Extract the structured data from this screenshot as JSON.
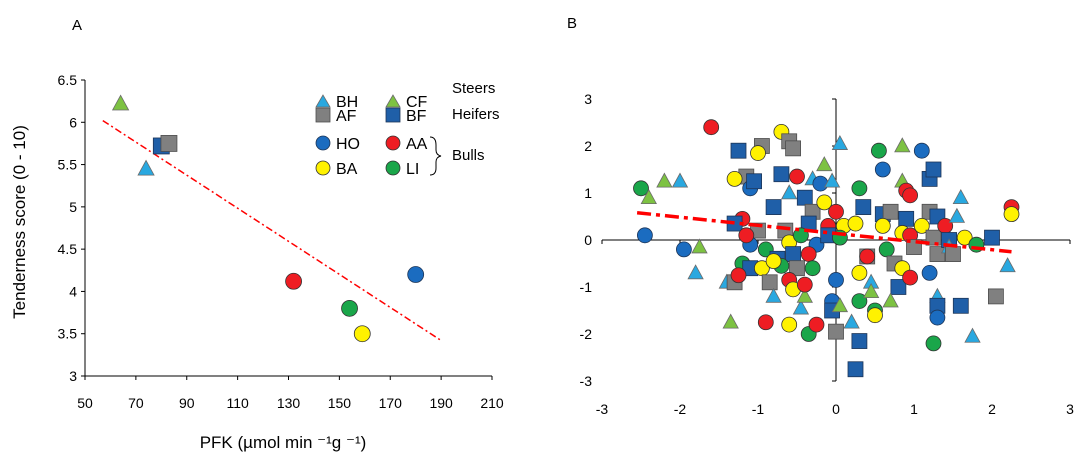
{
  "colors": {
    "BH": "#29a8e0",
    "CF": "#7dc242",
    "AF": "#808080",
    "BF": "#1f5fa8",
    "HO": "#1b6cc0",
    "AA": "#ee1d23",
    "BA": "#fff200",
    "LI": "#1aa64a",
    "trend": "#ff0000"
  },
  "legend": {
    "items": [
      {
        "key": "BH",
        "label": "BH",
        "shape": "triangle"
      },
      {
        "key": "CF",
        "label": "CF",
        "shape": "triangle"
      },
      {
        "key": "AF",
        "label": "AF",
        "shape": "square"
      },
      {
        "key": "BF",
        "label": "BF",
        "shape": "square"
      },
      {
        "key": "HO",
        "label": "HO",
        "shape": "circle"
      },
      {
        "key": "AA",
        "label": "AA",
        "shape": "circle"
      },
      {
        "key": "BA",
        "label": "BA",
        "shape": "circle"
      },
      {
        "key": "LI",
        "label": "LI",
        "shape": "circle"
      }
    ],
    "groups": [
      "Steers",
      "Heifers",
      "Bulls"
    ]
  },
  "chart_data": [
    {
      "panel": "A",
      "type": "scatter",
      "xlabel": "PFK (µmol min ⁻¹g ⁻¹)",
      "ylabel": "Tenderness score (0 - 10)",
      "xlim": [
        50,
        210
      ],
      "ylim": [
        3,
        6.5
      ],
      "xticks": [
        50,
        70,
        90,
        110,
        130,
        150,
        170,
        190,
        210
      ],
      "yticks": [
        3,
        3.5,
        4,
        4.5,
        5,
        5.5,
        6,
        6.5
      ],
      "grid": false,
      "legend_position": "top-right",
      "points": [
        {
          "group": "CF",
          "x": 64,
          "y": 6.22
        },
        {
          "group": "BH",
          "x": 74,
          "y": 5.45
        },
        {
          "group": "BF",
          "x": 80,
          "y": 5.72
        },
        {
          "group": "AF",
          "x": 83,
          "y": 5.75
        },
        {
          "group": "AA",
          "x": 132,
          "y": 4.12
        },
        {
          "group": "LI",
          "x": 154,
          "y": 3.8
        },
        {
          "group": "BA",
          "x": 159,
          "y": 3.5
        },
        {
          "group": "HO",
          "x": 180,
          "y": 4.2
        }
      ],
      "trendline": {
        "x": [
          57,
          190
        ],
        "y": [
          6.02,
          3.42
        ],
        "style": "dash-dot"
      }
    },
    {
      "panel": "B",
      "type": "scatter",
      "xlim": [
        -3,
        3
      ],
      "ylim": [
        -3,
        3
      ],
      "xticks": [
        -3,
        -2,
        -1,
        0,
        1,
        2,
        3
      ],
      "yticks": [
        -3,
        -2,
        -1,
        0,
        1,
        2,
        3
      ],
      "grid": false,
      "trendline": {
        "x": [
          -2.55,
          2.25
        ],
        "y": [
          0.58,
          -0.25
        ],
        "style": "dash-dot"
      },
      "points": [
        {
          "group": "AA",
          "x": -1.6,
          "y": 2.4
        },
        {
          "group": "LI",
          "x": -2.5,
          "y": 1.1
        },
        {
          "group": "CF",
          "x": -2.4,
          "y": 0.9
        },
        {
          "group": "CF",
          "x": -2.2,
          "y": 1.25
        },
        {
          "group": "BH",
          "x": -2.0,
          "y": 1.25
        },
        {
          "group": "HO",
          "x": -2.45,
          "y": 0.1
        },
        {
          "group": "HO",
          "x": -1.95,
          "y": -0.2
        },
        {
          "group": "BH",
          "x": -1.8,
          "y": -0.7
        },
        {
          "group": "CF",
          "x": -1.75,
          "y": -0.15
        },
        {
          "group": "CF",
          "x": -1.35,
          "y": -1.75
        },
        {
          "group": "BH",
          "x": -1.4,
          "y": -0.9
        },
        {
          "group": "AF",
          "x": -1.3,
          "y": -0.9
        },
        {
          "group": "BF",
          "x": -1.25,
          "y": 1.9
        },
        {
          "group": "AF",
          "x": -1.15,
          "y": 1.35
        },
        {
          "group": "BA",
          "x": -1.3,
          "y": 1.3
        },
        {
          "group": "HO",
          "x": -1.1,
          "y": 1.1
        },
        {
          "group": "BF",
          "x": -1.05,
          "y": 1.25
        },
        {
          "group": "AF",
          "x": -0.95,
          "y": 2.0
        },
        {
          "group": "BA",
          "x": -1.0,
          "y": 1.85
        },
        {
          "group": "AA",
          "x": -1.2,
          "y": 0.45
        },
        {
          "group": "BF",
          "x": -1.3,
          "y": 0.35
        },
        {
          "group": "AF",
          "x": -1.0,
          "y": 0.2
        },
        {
          "group": "HO",
          "x": -1.1,
          "y": -0.1
        },
        {
          "group": "AA",
          "x": -1.15,
          "y": 0.1
        },
        {
          "group": "LI",
          "x": -1.2,
          "y": -0.5
        },
        {
          "group": "BF",
          "x": -1.1,
          "y": -0.6
        },
        {
          "group": "AA",
          "x": -1.25,
          "y": -0.75
        },
        {
          "group": "BA",
          "x": -0.95,
          "y": -0.6
        },
        {
          "group": "AF",
          "x": -0.85,
          "y": -0.9
        },
        {
          "group": "LI",
          "x": -0.9,
          "y": -0.2
        },
        {
          "group": "AA",
          "x": -0.9,
          "y": -1.75
        },
        {
          "group": "BH",
          "x": -0.8,
          "y": -1.2
        },
        {
          "group": "BF",
          "x": -0.75,
          "y": -0.4
        },
        {
          "group": "BA",
          "x": -0.7,
          "y": 2.3
        },
        {
          "group": "AF",
          "x": -0.6,
          "y": 2.1
        },
        {
          "group": "AF",
          "x": -0.55,
          "y": 1.95
        },
        {
          "group": "BF",
          "x": -0.7,
          "y": 1.4
        },
        {
          "group": "AA",
          "x": -0.5,
          "y": 1.35
        },
        {
          "group": "BF",
          "x": -0.8,
          "y": 0.7
        },
        {
          "group": "BH",
          "x": -0.6,
          "y": 1.0
        },
        {
          "group": "AF",
          "x": -0.65,
          "y": 0.2
        },
        {
          "group": "BA",
          "x": -0.6,
          "y": -0.05
        },
        {
          "group": "BF",
          "x": -0.55,
          "y": -0.3
        },
        {
          "group": "LI",
          "x": -0.7,
          "y": -0.55
        },
        {
          "group": "BA",
          "x": -0.8,
          "y": -0.45
        },
        {
          "group": "AF",
          "x": -0.5,
          "y": -0.6
        },
        {
          "group": "AA",
          "x": -0.6,
          "y": -0.85
        },
        {
          "group": "BA",
          "x": -0.55,
          "y": -1.05
        },
        {
          "group": "BA",
          "x": -0.6,
          "y": -1.8
        },
        {
          "group": "BH",
          "x": -0.45,
          "y": -1.45
        },
        {
          "group": "CF",
          "x": -0.4,
          "y": -1.2
        },
        {
          "group": "LI",
          "x": -0.35,
          "y": -2.0
        },
        {
          "group": "AA",
          "x": -0.25,
          "y": -1.8
        },
        {
          "group": "BH",
          "x": -0.3,
          "y": 1.3
        },
        {
          "group": "HO",
          "x": -0.2,
          "y": 1.2
        },
        {
          "group": "BF",
          "x": -0.4,
          "y": 0.9
        },
        {
          "group": "AF",
          "x": -0.3,
          "y": 0.6
        },
        {
          "group": "BA",
          "x": -0.15,
          "y": 0.8
        },
        {
          "group": "BF",
          "x": -0.35,
          "y": 0.35
        },
        {
          "group": "LI",
          "x": -0.45,
          "y": 0.1
        },
        {
          "group": "HO",
          "x": -0.25,
          "y": -0.1
        },
        {
          "group": "AA",
          "x": -0.35,
          "y": -0.3
        },
        {
          "group": "LI",
          "x": -0.3,
          "y": -0.6
        },
        {
          "group": "AA",
          "x": -0.4,
          "y": -0.95
        },
        {
          "group": "CF",
          "x": -0.15,
          "y": 1.6
        },
        {
          "group": "BH",
          "x": -0.05,
          "y": 1.25
        },
        {
          "group": "AA",
          "x": 0.0,
          "y": 0.6
        },
        {
          "group": "AA",
          "x": -0.1,
          "y": 0.3
        },
        {
          "group": "BF",
          "x": -0.1,
          "y": 0.1
        },
        {
          "group": "HO",
          "x": 0.0,
          "y": -0.85
        },
        {
          "group": "HO",
          "x": -0.05,
          "y": -1.3
        },
        {
          "group": "BF",
          "x": -0.05,
          "y": -1.5
        },
        {
          "group": "AF",
          "x": 0.0,
          "y": -1.95
        },
        {
          "group": "CF",
          "x": 0.05,
          "y": -1.4
        },
        {
          "group": "BH",
          "x": 0.05,
          "y": 2.05
        },
        {
          "group": "BA",
          "x": 0.1,
          "y": 0.3
        },
        {
          "group": "LI",
          "x": 0.05,
          "y": 0.05
        },
        {
          "group": "BH",
          "x": 0.2,
          "y": -1.75
        },
        {
          "group": "LI",
          "x": 0.3,
          "y": -1.3
        },
        {
          "group": "BF",
          "x": 0.25,
          "y": -2.75
        },
        {
          "group": "BF",
          "x": 0.3,
          "y": -2.15
        },
        {
          "group": "BA",
          "x": 0.25,
          "y": 0.35
        },
        {
          "group": "LI",
          "x": 0.3,
          "y": 1.1
        },
        {
          "group": "BF",
          "x": 0.35,
          "y": 0.7
        },
        {
          "group": "AF",
          "x": 0.4,
          "y": -0.35
        },
        {
          "group": "BA",
          "x": 0.3,
          "y": -0.7
        },
        {
          "group": "AA",
          "x": 0.4,
          "y": -0.35
        },
        {
          "group": "BH",
          "x": 0.45,
          "y": -0.9
        },
        {
          "group": "LI",
          "x": 0.5,
          "y": -1.5
        },
        {
          "group": "BA",
          "x": 0.5,
          "y": -1.6
        },
        {
          "group": "CF",
          "x": 0.45,
          "y": -1.1
        },
        {
          "group": "LI",
          "x": 0.55,
          "y": 1.9
        },
        {
          "group": "HO",
          "x": 0.6,
          "y": 1.5
        },
        {
          "group": "BF",
          "x": 0.6,
          "y": 0.55
        },
        {
          "group": "AF",
          "x": 0.7,
          "y": 0.6
        },
        {
          "group": "BA",
          "x": 0.6,
          "y": 0.3
        },
        {
          "group": "LI",
          "x": 0.65,
          "y": -0.2
        },
        {
          "group": "AF",
          "x": 0.75,
          "y": -0.5
        },
        {
          "group": "BF",
          "x": 0.8,
          "y": -1.0
        },
        {
          "group": "CF",
          "x": 0.7,
          "y": -1.3
        },
        {
          "group": "CF",
          "x": 0.85,
          "y": 2.0
        },
        {
          "group": "CF",
          "x": 0.85,
          "y": 1.25
        },
        {
          "group": "AA",
          "x": 0.9,
          "y": 1.05
        },
        {
          "group": "AA",
          "x": 0.95,
          "y": 0.95
        },
        {
          "group": "BF",
          "x": 0.9,
          "y": 0.45
        },
        {
          "group": "BA",
          "x": 0.85,
          "y": 0.15
        },
        {
          "group": "AA",
          "x": 0.95,
          "y": 0.1
        },
        {
          "group": "AF",
          "x": 1.0,
          "y": -0.15
        },
        {
          "group": "BA",
          "x": 0.85,
          "y": -0.6
        },
        {
          "group": "AA",
          "x": 0.95,
          "y": -0.8
        },
        {
          "group": "HO",
          "x": 1.1,
          "y": 1.9
        },
        {
          "group": "BF",
          "x": 1.2,
          "y": 1.3
        },
        {
          "group": "BF",
          "x": 1.25,
          "y": 1.5
        },
        {
          "group": "AF",
          "x": 1.2,
          "y": 0.6
        },
        {
          "group": "BA",
          "x": 1.1,
          "y": 0.3
        },
        {
          "group": "BF",
          "x": 1.3,
          "y": 0.5
        },
        {
          "group": "AF",
          "x": 1.25,
          "y": 0.05
        },
        {
          "group": "AF",
          "x": 1.3,
          "y": -0.3
        },
        {
          "group": "HO",
          "x": 1.2,
          "y": -0.7
        },
        {
          "group": "BH",
          "x": 1.3,
          "y": -1.2
        },
        {
          "group": "BF",
          "x": 1.3,
          "y": -1.4
        },
        {
          "group": "HO",
          "x": 1.3,
          "y": -1.65
        },
        {
          "group": "LI",
          "x": 1.25,
          "y": -2.2
        },
        {
          "group": "AA",
          "x": 1.4,
          "y": 0.3
        },
        {
          "group": "BF",
          "x": 1.45,
          "y": 0.0
        },
        {
          "group": "BH",
          "x": 1.45,
          "y": -0.15
        },
        {
          "group": "AF",
          "x": 1.5,
          "y": -0.3
        },
        {
          "group": "BH",
          "x": 1.6,
          "y": 0.9
        },
        {
          "group": "BH",
          "x": 1.55,
          "y": 0.5
        },
        {
          "group": "BA",
          "x": 1.65,
          "y": 0.05
        },
        {
          "group": "BF",
          "x": 1.6,
          "y": -1.4
        },
        {
          "group": "BH",
          "x": 1.75,
          "y": -2.05
        },
        {
          "group": "LI",
          "x": 1.8,
          "y": -0.1
        },
        {
          "group": "BF",
          "x": 2.0,
          "y": 0.05
        },
        {
          "group": "AF",
          "x": 2.05,
          "y": -1.2
        },
        {
          "group": "BH",
          "x": 2.2,
          "y": -0.55
        },
        {
          "group": "AA",
          "x": 2.25,
          "y": 0.7
        },
        {
          "group": "BA",
          "x": 2.25,
          "y": 0.55
        }
      ]
    }
  ]
}
